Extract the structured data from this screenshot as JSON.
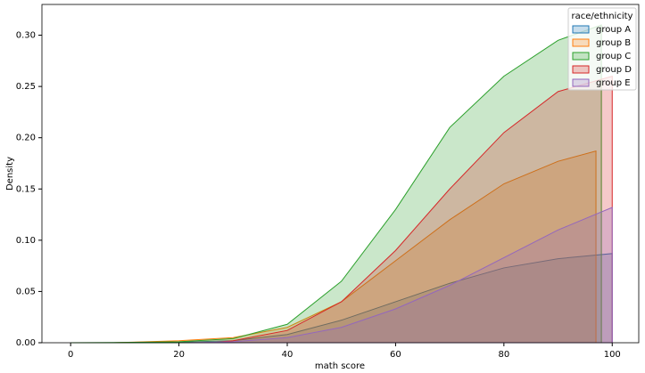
{
  "chart_data": {
    "type": "area",
    "xlabel": "math score",
    "ylabel": "Density",
    "xlim": [
      -5.3,
      104.9
    ],
    "ylim": [
      0,
      0.33
    ],
    "xticks": [
      0,
      20,
      40,
      60,
      80,
      100
    ],
    "yticks": [
      {
        "value": 0,
        "label": "0.00"
      },
      {
        "value": 0.05,
        "label": "0.05"
      },
      {
        "value": 0.1,
        "label": "0.10"
      },
      {
        "value": 0.15,
        "label": "0.15"
      },
      {
        "value": 0.2,
        "label": "0.20"
      },
      {
        "value": 0.25,
        "label": "0.25"
      },
      {
        "value": 0.3,
        "label": "0.30"
      }
    ],
    "legend_title": "race/ethnicity",
    "legend_position": "upper right",
    "series": [
      {
        "name": "group A",
        "color": "#1f77b4",
        "x": [
          8,
          20,
          30,
          40,
          50,
          60,
          70,
          80,
          90,
          100
        ],
        "values": [
          0,
          0.0005,
          0.002,
          0.008,
          0.022,
          0.04,
          0.058,
          0.073,
          0.082,
          0.087
        ]
      },
      {
        "name": "group B",
        "color": "#ff7f0e",
        "x": [
          8,
          20,
          30,
          40,
          50,
          60,
          70,
          80,
          90,
          97
        ],
        "values": [
          0,
          0.002,
          0.005,
          0.015,
          0.04,
          0.08,
          0.12,
          0.155,
          0.177,
          0.187
        ]
      },
      {
        "name": "group C",
        "color": "#2ca02c",
        "x": [
          0,
          10,
          20,
          30,
          40,
          50,
          60,
          70,
          80,
          90,
          98
        ],
        "values": [
          0,
          0.0003,
          0.001,
          0.004,
          0.018,
          0.06,
          0.13,
          0.21,
          0.26,
          0.295,
          0.31
        ]
      },
      {
        "name": "group D",
        "color": "#d62728",
        "x": [
          26,
          30,
          40,
          50,
          60,
          70,
          80,
          90,
          100
        ],
        "values": [
          0,
          0.002,
          0.012,
          0.04,
          0.09,
          0.15,
          0.205,
          0.245,
          0.26
        ]
      },
      {
        "name": "group E",
        "color": "#9467bd",
        "x": [
          22,
          30,
          40,
          50,
          60,
          70,
          80,
          90,
          100
        ],
        "values": [
          0,
          0.001,
          0.005,
          0.015,
          0.033,
          0.056,
          0.083,
          0.11,
          0.132
        ]
      }
    ]
  }
}
